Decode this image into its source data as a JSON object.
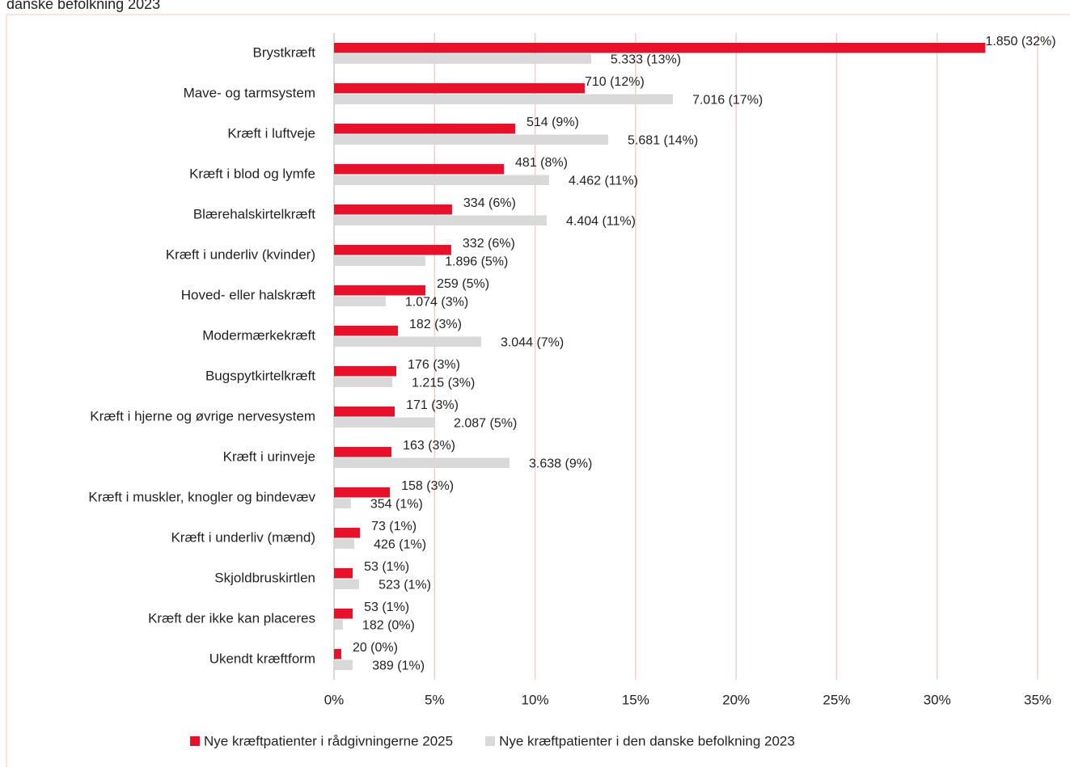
{
  "chart_data": {
    "type": "bar",
    "orientation": "horizontal",
    "title": "danske befolkning 2023",
    "categories": [
      "Brystkræft",
      "Mave- og tarmsystem",
      "Kræft i luftveje",
      "Kræft i blod og lymfe",
      "Blærehalskirtelkræft",
      "Kræft i underliv (kvinder)",
      "Hoved- eller halskræft",
      "Modermærkekræft",
      "Bugspytkirtelkræft",
      "Kræft i hjerne og øvrige nervesystem",
      "Kræft i urinveje",
      "Kræft i muskler, knogler og bindevæv",
      "Kræft i underliv (mænd)",
      "Skjoldbruskirtlen",
      "Kræft der ikke kan placeres",
      "Ukendt kræftform"
    ],
    "series": [
      {
        "name": "Nye kræftpatienter i rådgivningerne 2025",
        "color": "#e8102a",
        "values": [
          32.4,
          12.47,
          9.01,
          8.45,
          5.87,
          5.83,
          4.55,
          3.18,
          3.1,
          3.02,
          2.86,
          2.78,
          1.29,
          0.93,
          0.93,
          0.36
        ],
        "value_labels": [
          "1.850 (32%)",
          "710 (12%)",
          "514 (9%)",
          "481 (8%)",
          "334 (6%)",
          "332 (6%)",
          "259 (5%)",
          "182 (3%)",
          "176 (3%)",
          "171 (3%)",
          "163 (3%)",
          "158 (3%)",
          "73 (1%)",
          "53 (1%)",
          "53 (1%)",
          "20 (0%)"
        ]
      },
      {
        "name": "Nye kræftpatienter i den danske befolkning 2023",
        "color": "#d9d9d9",
        "values": [
          12.79,
          16.86,
          13.64,
          10.7,
          10.58,
          4.55,
          2.57,
          7.32,
          2.9,
          4.99,
          8.73,
          0.84,
          1.01,
          1.25,
          0.44,
          0.93
        ],
        "value_labels": [
          "5.333 (13%)",
          "7.016 (17%)",
          "5.681 (14%)",
          "4.462 (11%)",
          "4.404 (11%)",
          "1.896 (5%)",
          "1.074 (3%)",
          "3.044 (7%)",
          "1.215 (3%)",
          "2.087 (5%)",
          "3.638 (9%)",
          "354 (1%)",
          "426 (1%)",
          "523 (1%)",
          "182 (0%)",
          "389 (1%)"
        ]
      }
    ],
    "xlim": [
      0,
      35
    ],
    "xticks": [
      {
        "value": 0,
        "label": "0%"
      },
      {
        "value": 5,
        "label": "5%"
      },
      {
        "value": 10,
        "label": "10%"
      },
      {
        "value": 15,
        "label": "15%"
      },
      {
        "value": 20,
        "label": "20%"
      },
      {
        "value": 25,
        "label": "25%"
      },
      {
        "value": 30,
        "label": "30%"
      },
      {
        "value": 35,
        "label": "35%"
      }
    ],
    "grid": true,
    "legend": "bottom"
  }
}
